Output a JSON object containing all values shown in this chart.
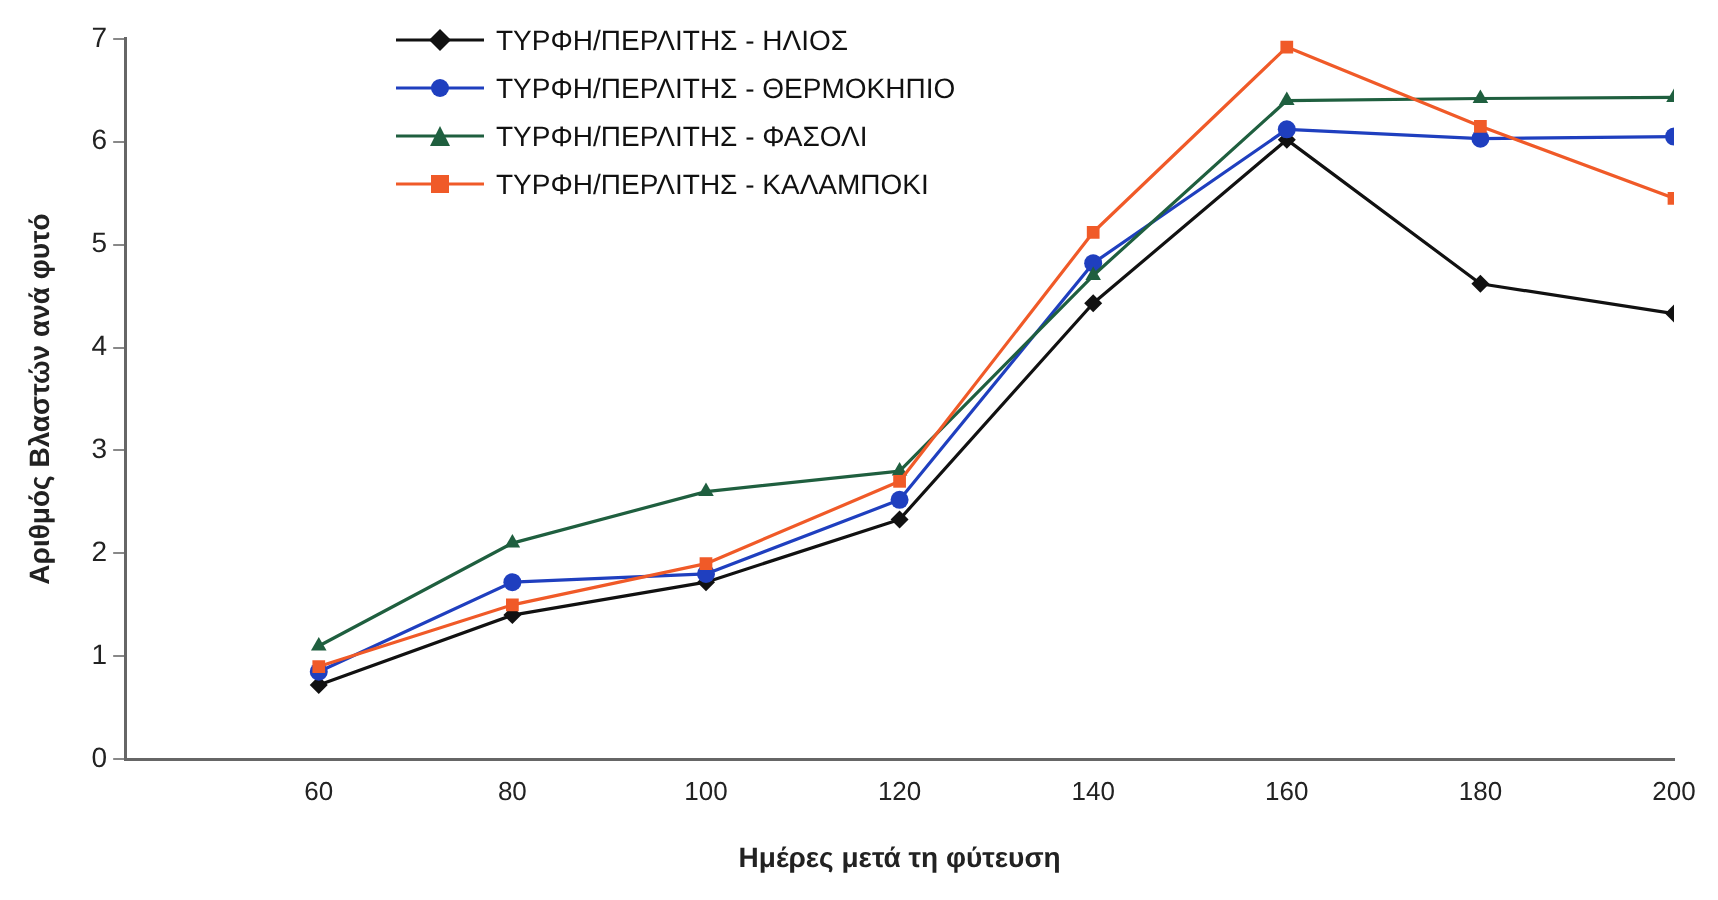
{
  "chart_data": {
    "type": "line",
    "xlabel": "Ημέρες μετά τη φύτευση",
    "ylabel": "Αριθμός Βλαστών ανά φυτό",
    "x": [
      60,
      80,
      100,
      120,
      140,
      160,
      180,
      200
    ],
    "xlim": [
      40,
      200
    ],
    "xticks": [
      60,
      80,
      100,
      120,
      140,
      160,
      180,
      200
    ],
    "ylim": [
      0,
      7
    ],
    "yticks": [
      0,
      1,
      2,
      3,
      4,
      5,
      6,
      7
    ],
    "grid": false,
    "legend": "top left",
    "line_style": "solid",
    "series": [
      {
        "name": "ΤΥΡΦΗ/ΠΕΡΛΙΤΗΣ - ΗΛΙΟΣ",
        "color": "#111111",
        "marker": "diamond",
        "values": [
          0.72,
          1.4,
          1.72,
          2.33,
          4.43,
          6.02,
          4.62,
          4.33
        ]
      },
      {
        "name": "ΤΥΡΦΗ/ΠΕΡΛΙΤΗΣ - ΘΕΡΜΟΚΗΠΙΟ",
        "color": "#1f3fbf",
        "marker": "circle",
        "values": [
          0.85,
          1.72,
          1.8,
          2.52,
          4.82,
          6.12,
          6.03,
          6.05
        ]
      },
      {
        "name": "ΤΥΡΦΗ/ΠΕΡΛΙΤΗΣ - ΦΑΣΟΛΙ",
        "color": "#1f5f3f",
        "marker": "triangle",
        "values": [
          1.1,
          2.1,
          2.6,
          2.8,
          4.7,
          6.4,
          6.42,
          6.43
        ]
      },
      {
        "name": "ΤΥΡΦΗ/ΠΕΡΛΙΤΗΣ - ΚΑΛΑΜΠΟΚΙ",
        "color": "#f05a28",
        "marker": "square",
        "values": [
          0.9,
          1.5,
          1.9,
          2.7,
          5.12,
          6.92,
          6.15,
          5.45
        ]
      }
    ]
  }
}
